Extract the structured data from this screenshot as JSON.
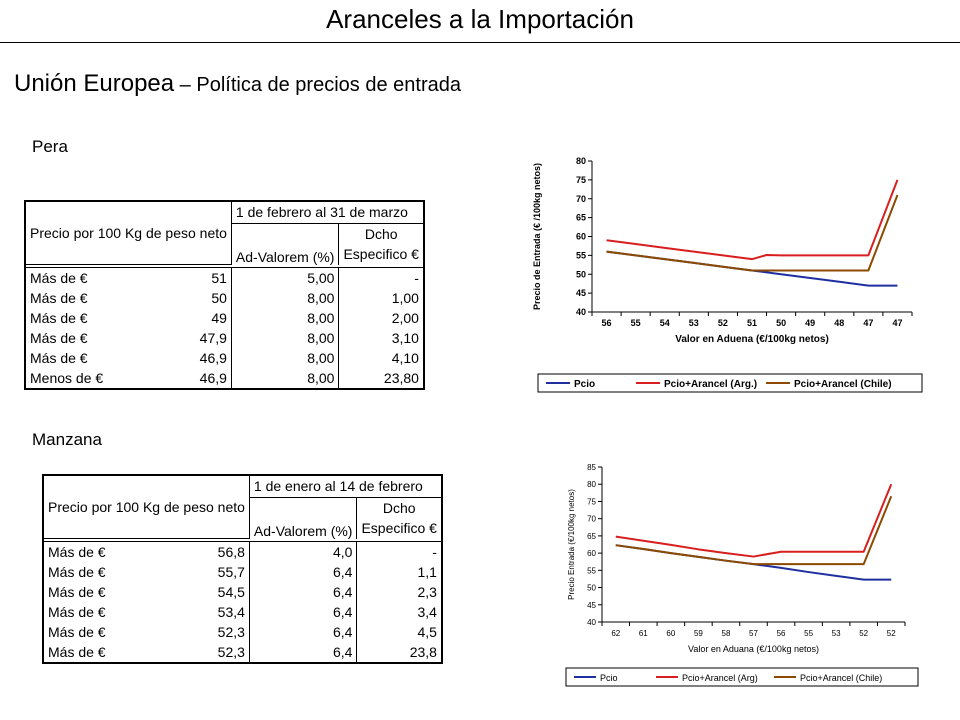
{
  "header": {
    "title": "Aranceles a la Importación",
    "subtitle_main": "Unión Europea",
    "subtitle_rest": " – Política de precios de entrada"
  },
  "pera": {
    "label": "Pera",
    "table": {
      "price_header": "Precio por 100 Kg de peso neto",
      "period": "1 de febrero al 31 de marzo",
      "col_av": "Ad-Valorem (%)",
      "col_dcho_1": "Dcho",
      "col_dcho_2": "Especifico €",
      "rows": [
        {
          "label": "Más de €",
          "value": "51",
          "av": "5,00",
          "dcho": "-"
        },
        {
          "label": "Más de €",
          "value": "50",
          "av": "8,00",
          "dcho": "1,00"
        },
        {
          "label": "Más de €",
          "value": "49",
          "av": "8,00",
          "dcho": "2,00"
        },
        {
          "label": "Más de €",
          "value": "47,9",
          "av": "8,00",
          "dcho": "3,10"
        },
        {
          "label": "Más de €",
          "value": "46,9",
          "av": "8,00",
          "dcho": "4,10"
        },
        {
          "label": "Menos de €",
          "value": "46,9",
          "av": "8,00",
          "dcho": "23,80"
        }
      ]
    }
  },
  "manzana": {
    "label": "Manzana",
    "table": {
      "price_header": "Precio por 100 Kg de peso neto",
      "period": "1 de enero al 14 de febrero",
      "col_av": "Ad-Valorem (%)",
      "col_dcho_1": "Dcho",
      "col_dcho_2": "Especifico €",
      "rows": [
        {
          "label": "Más de €",
          "value": "56,8",
          "av": "4,0",
          "dcho": "-"
        },
        {
          "label": "Más de €",
          "value": "55,7",
          "av": "6,4",
          "dcho": "1,1"
        },
        {
          "label": "Más de €",
          "value": "54,5",
          "av": "6,4",
          "dcho": "2,3"
        },
        {
          "label": "Más de €",
          "value": "53,4",
          "av": "6,4",
          "dcho": "3,4"
        },
        {
          "label": "Más de €",
          "value": "52,3",
          "av": "6,4",
          "dcho": "4,5"
        },
        {
          "label": "Más de €",
          "value": "52,3",
          "av": "6,4",
          "dcho": "23,8"
        }
      ]
    }
  },
  "chart_data": [
    {
      "type": "line",
      "categories": [
        "56",
        "55",
        "54",
        "53",
        "52",
        "51",
        "50",
        "49",
        "48",
        "47",
        "47"
      ],
      "x": [
        0,
        1,
        2,
        3,
        4,
        5,
        5.5,
        6,
        7,
        8,
        9,
        10
      ],
      "series": [
        {
          "name": "Pcio",
          "color": "#1f2fa0",
          "x": [
            0,
            1,
            2,
            3,
            4,
            5,
            6,
            7,
            8,
            9,
            10
          ],
          "values": [
            56,
            55,
            54,
            53,
            52,
            51,
            50,
            49,
            48,
            47,
            47
          ]
        },
        {
          "name": "Pcio+Arancel (Arg.)",
          "color": "#d81e1e",
          "x": [
            0,
            1,
            2,
            3,
            4,
            5,
            5.5,
            6,
            7,
            8,
            9,
            10
          ],
          "values": [
            59,
            58,
            57,
            56,
            55,
            54,
            55.1,
            55,
            55,
            55,
            55,
            75
          ]
        },
        {
          "name": "Pcio+Arancel (Chile)",
          "color": "#8c4a00",
          "x": [
            0,
            1,
            2,
            3,
            4,
            5,
            6,
            7,
            8,
            9,
            10
          ],
          "values": [
            56,
            55,
            54,
            53,
            52,
            51,
            51,
            51,
            51,
            51,
            71
          ]
        }
      ],
      "title": "",
      "xlabel": "Valor en Aduena (€/100kg netos)",
      "ylabel": "Precio de Entrada (€ /100kg netos)",
      "ylim": [
        40,
        80
      ],
      "yticks": [
        40,
        45,
        50,
        55,
        60,
        65,
        70,
        75,
        80
      ],
      "grid": false,
      "legend_position": "bottom"
    },
    {
      "type": "line",
      "categories": [
        "62",
        "61",
        "60",
        "59",
        "58",
        "57",
        "56",
        "55",
        "53",
        "52",
        "52"
      ],
      "x": [
        0,
        1,
        2,
        3,
        4,
        5,
        6,
        7,
        8,
        9,
        10
      ],
      "series": [
        {
          "name": "Pcio",
          "color": "#1f2fa0",
          "x": [
            0,
            1,
            2,
            3,
            4,
            5,
            6,
            7,
            8,
            9,
            10
          ],
          "values": [
            62.3,
            61.2,
            60,
            58.9,
            57.8,
            56.8,
            55.7,
            54.5,
            53.4,
            52.3,
            52.3
          ]
        },
        {
          "name": "Pcio+Arancel (Arg)",
          "color": "#d81e1e",
          "x": [
            0,
            1,
            2,
            3,
            4,
            5,
            6,
            7,
            8,
            9,
            10
          ],
          "values": [
            64.8,
            63.6,
            62.4,
            61.1,
            60,
            59,
            60.4,
            60.4,
            60.4,
            60.4,
            80
          ]
        },
        {
          "name": "Pcio+Arancel (Chile)",
          "color": "#8c4a00",
          "x": [
            0,
            1,
            2,
            3,
            4,
            5,
            6,
            7,
            8,
            9,
            10
          ],
          "values": [
            62.3,
            61.2,
            60,
            58.9,
            57.8,
            56.8,
            56.8,
            56.8,
            56.8,
            56.8,
            76.5
          ]
        }
      ],
      "title": "",
      "xlabel": "Valor en Aduana (€/100kg netos)",
      "ylabel": "Precio Entrada (€/100kg netos)",
      "ylim": [
        40,
        85
      ],
      "yticks": [
        40,
        45,
        50,
        55,
        60,
        65,
        70,
        75,
        80,
        85
      ],
      "grid": false,
      "legend_position": "bottom"
    }
  ]
}
